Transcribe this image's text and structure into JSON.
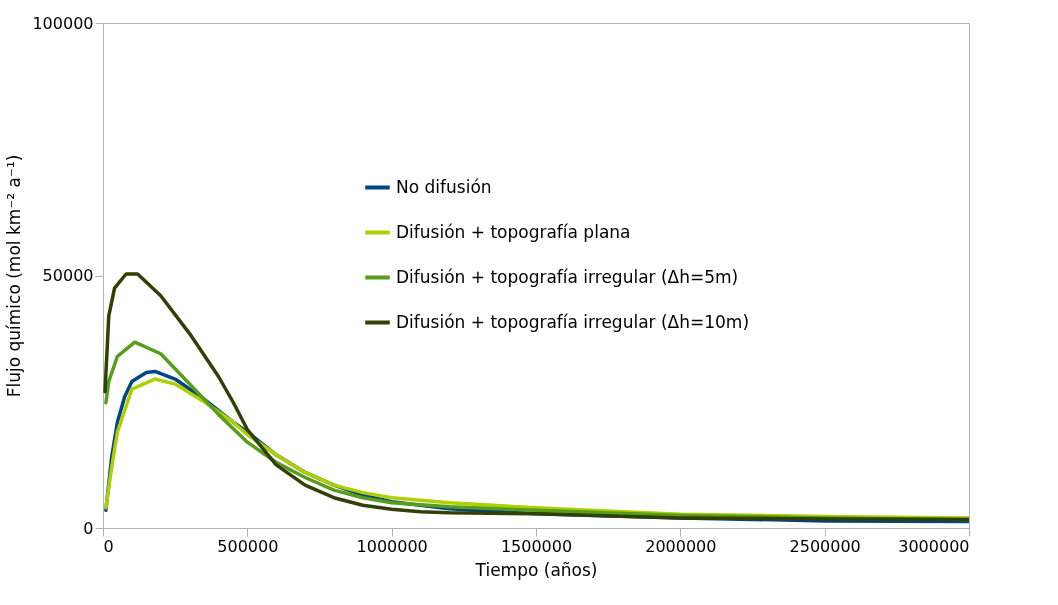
{
  "chart_data": {
    "type": "line",
    "xlabel": "Tiempo (años)",
    "ylabel": "Flujo químico (mol km⁻² a⁻¹)",
    "xlim": [
      0,
      3000000
    ],
    "xticks": [
      0,
      500000,
      1000000,
      1500000,
      2000000,
      2500000,
      3000000
    ],
    "ylim": [
      0,
      100000
    ],
    "yticks": [
      0,
      50000,
      100000
    ],
    "grid": false,
    "legend": "right",
    "marker": "none",
    "line_style": "solid",
    "series": [
      {
        "name": "No difusión",
        "color": "#004586",
        "x": [
          10000,
          30000,
          50000,
          75000,
          100000,
          150000,
          180000,
          250000,
          350000,
          450000,
          500000,
          600000,
          700000,
          800000,
          900000,
          1000000,
          1200000,
          1500000,
          2000000,
          2500000,
          3000000
        ],
        "values": [
          3500,
          14000,
          21000,
          26000,
          29000,
          30800,
          31000,
          29500,
          25500,
          21000,
          19000,
          14500,
          11000,
          8500,
          6500,
          5200,
          3800,
          2800,
          2000,
          1400,
          1300
        ]
      },
      {
        "name": "Difusión + topografía plana",
        "color": "#aecf00",
        "x": [
          10000,
          30000,
          50000,
          100000,
          180000,
          250000,
          350000,
          450000,
          500000,
          600000,
          700000,
          800000,
          900000,
          1000000,
          1200000,
          1500000,
          2000000,
          2500000,
          3000000
        ],
        "values": [
          4000,
          12000,
          19000,
          27500,
          29500,
          28500,
          25000,
          21000,
          18500,
          14500,
          11000,
          8500,
          7000,
          6000,
          5000,
          4000,
          2700,
          2300,
          2000
        ]
      },
      {
        "name": "Difusión + topografía irregular (Δh=5m)",
        "color": "#579d1c",
        "x": [
          10000,
          20000,
          50000,
          110000,
          200000,
          300000,
          400000,
          500000,
          600000,
          700000,
          800000,
          900000,
          1000000,
          1200000,
          1500000,
          2000000,
          2500000,
          3000000
        ],
        "values": [
          24800,
          29000,
          34000,
          36800,
          34500,
          28500,
          22500,
          17000,
          13000,
          10000,
          7500,
          6000,
          5000,
          4200,
          3500,
          2500,
          2000,
          1700
        ]
      },
      {
        "name": "Difusión + topografía irregular (Δh=10m)",
        "color": "#314004",
        "x": [
          7000,
          20000,
          40000,
          80000,
          120000,
          200000,
          300000,
          400000,
          450000,
          500000,
          600000,
          700000,
          800000,
          900000,
          1000000,
          1100000,
          1200000,
          1500000,
          2000000,
          2500000,
          3000000
        ],
        "values": [
          27000,
          42000,
          47500,
          50300,
          50300,
          46000,
          38500,
          30000,
          25000,
          19500,
          12500,
          8500,
          6000,
          4500,
          3700,
          3200,
          3000,
          2800,
          2000,
          1800,
          1700
        ]
      }
    ]
  }
}
